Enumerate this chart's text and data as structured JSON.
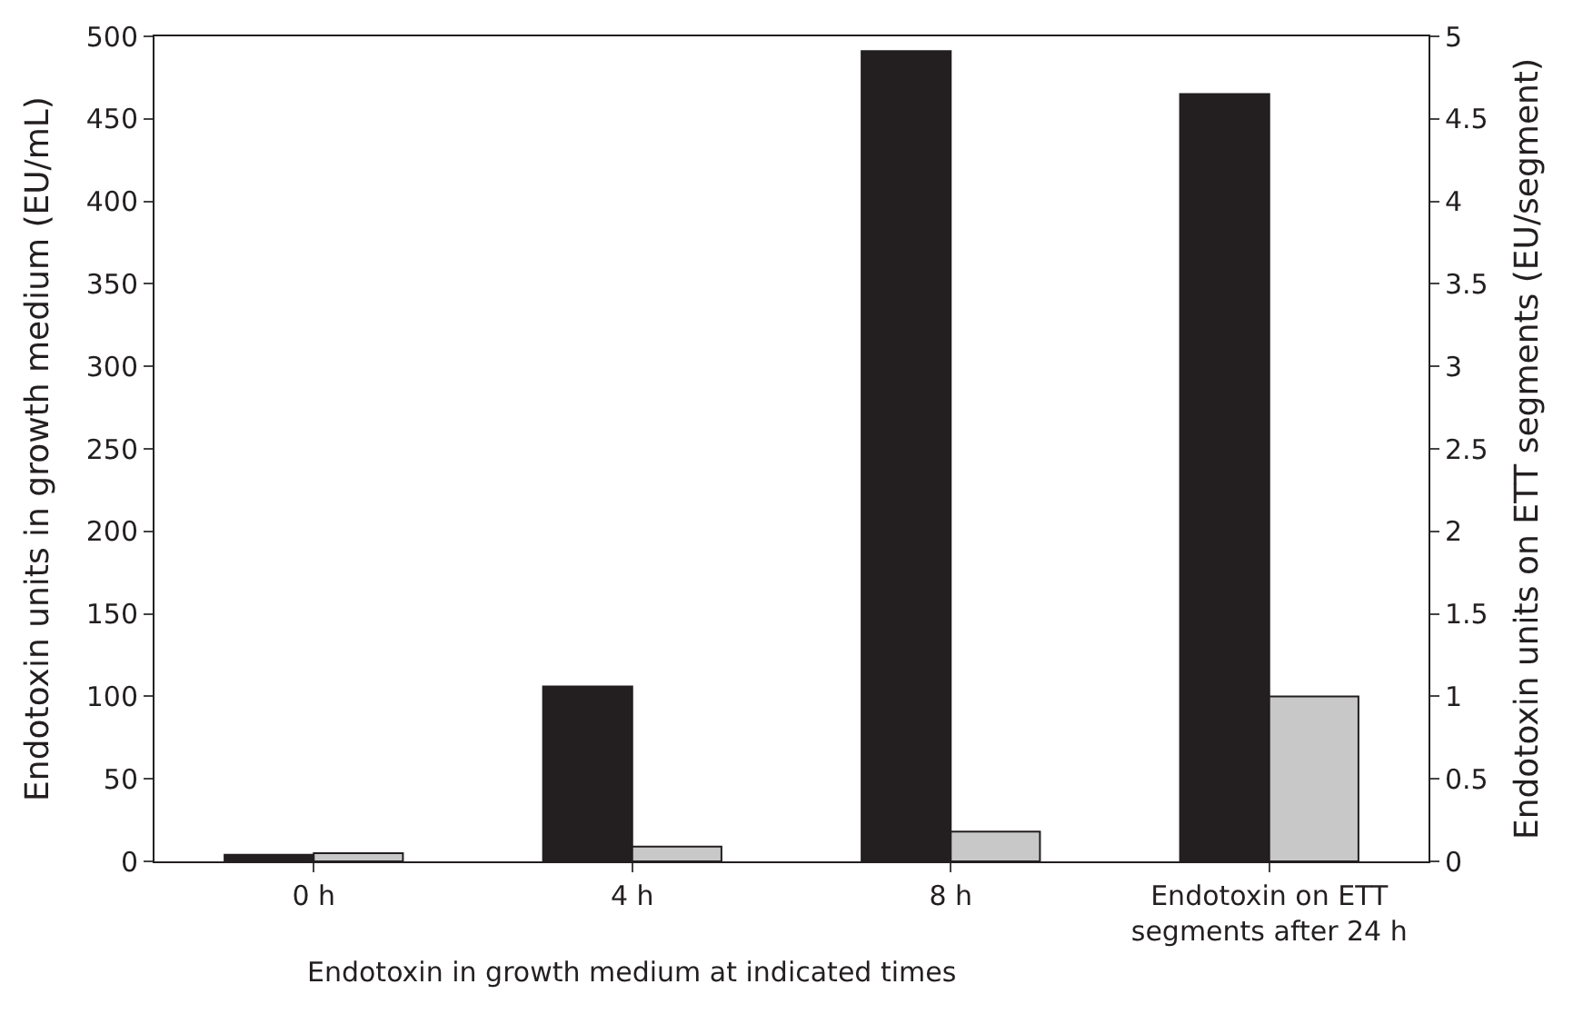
{
  "chart_data": {
    "type": "bar",
    "categories": [
      "0 h",
      "4 h",
      "8 h",
      "Endotoxin on ETT\nsegments after 24 h"
    ],
    "xlabel": "Endotoxin in growth medium at indicated times",
    "ylabel": "Endotoxin units in growth medium (EU/mL)",
    "y2label": "Endotoxin units on ETT segments (EU/segment)",
    "series": [
      {
        "color": "#231f20",
        "values": [
          4,
          106,
          491,
          null
        ]
      },
      {
        "color": "#c8c8c8",
        "values": [
          5,
          9,
          18,
          null
        ]
      },
      {
        "color": "#231f20",
        "values": [
          null,
          null,
          null,
          4.65
        ],
        "axis": "y2"
      },
      {
        "color": "#c8c8c8",
        "values": [
          null,
          null,
          null,
          1.0
        ],
        "axis": "y2"
      }
    ],
    "ylim": [
      0,
      500
    ],
    "yticks": [
      0,
      50,
      100,
      150,
      200,
      250,
      300,
      350,
      400,
      450,
      500
    ],
    "y2lim": [
      0,
      5
    ],
    "y2ticks": [
      0,
      0.5,
      1,
      1.5,
      2,
      2.5,
      3,
      3.5,
      4,
      4.5,
      5
    ]
  }
}
